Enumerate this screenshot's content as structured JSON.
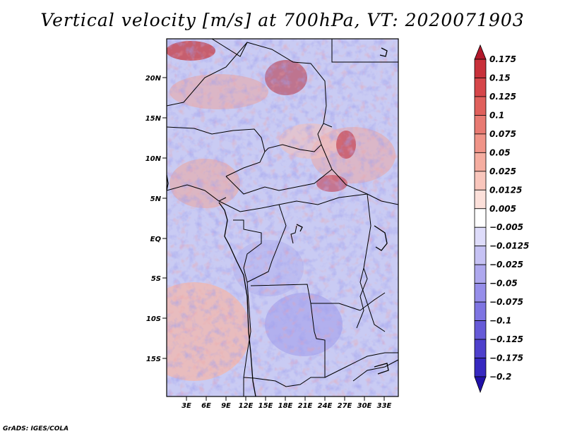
{
  "title": "Vertical velocity [m/s] at 700hPa, VT: 2020071903",
  "footer": "GrADS: IGES/COLA",
  "map": {
    "lat_labels": [
      "20N",
      "15N",
      "10N",
      "5N",
      "EQ",
      "5S",
      "10S",
      "15S"
    ],
    "lon_labels": [
      "3E",
      "6E",
      "9E",
      "12E",
      "15E",
      "18E",
      "21E",
      "24E",
      "27E",
      "30E",
      "33E"
    ]
  },
  "colorbar": {
    "labels": [
      "0.175",
      "0.15",
      "0.125",
      "0.1",
      "0.075",
      "0.05",
      "0.025",
      "0.0125",
      "0.005",
      "-0.005",
      "-0.0125",
      "-0.025",
      "-0.05",
      "-0.075",
      "-0.1",
      "-0.125",
      "-0.175",
      "-0.2"
    ],
    "colors": [
      "#b2182b",
      "#c8303a",
      "#d6464a",
      "#e0605c",
      "#e87a72",
      "#f09488",
      "#f5ada0",
      "#f9c6bc",
      "#fce0da",
      "#ffffff",
      "#dedcfa",
      "#c6c2f4",
      "#aea8ee",
      "#968eea",
      "#7e74e2",
      "#665ad8",
      "#4e40cc",
      "#3628c0",
      "#2010a8"
    ]
  }
}
